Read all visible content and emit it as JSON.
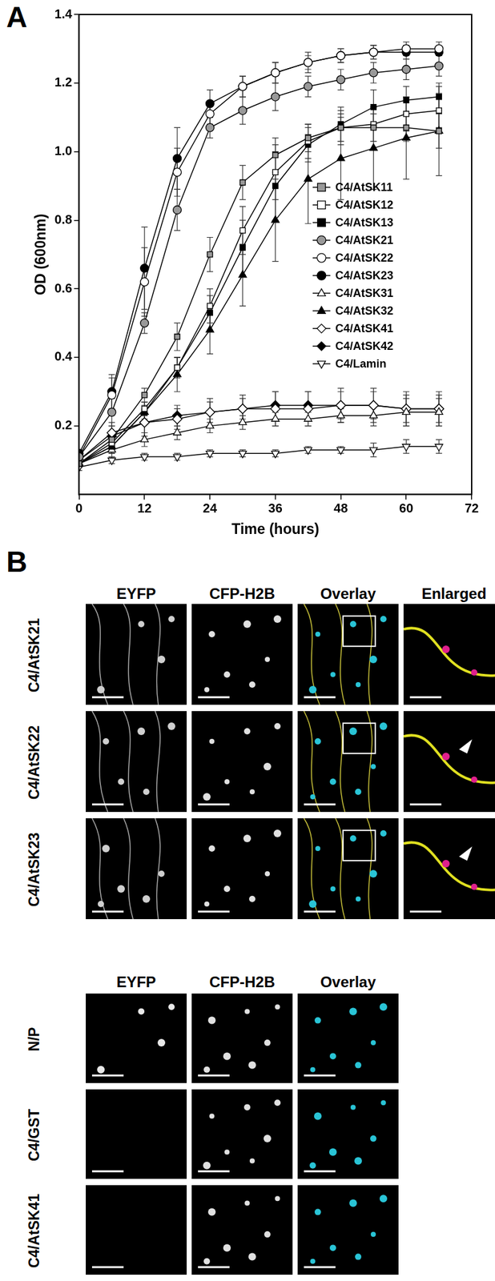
{
  "chart_data": {
    "type": "line",
    "panel_label": "A",
    "x_label": "Time (hours)",
    "y_label": "OD (600nm)",
    "x": [
      0,
      6,
      12,
      18,
      24,
      30,
      36,
      42,
      48,
      54,
      60,
      66
    ],
    "xlim": [
      0,
      72
    ],
    "xticks": [
      0,
      12,
      24,
      36,
      48,
      60,
      72
    ],
    "ylim": [
      0,
      1.4
    ],
    "yticks": [
      0.2,
      0.4,
      0.6,
      0.8,
      {
        "value": 1,
        "label": "1.0"
      },
      1.2,
      1.4
    ],
    "grid": false,
    "legend": "right",
    "series": [
      {
        "name": "C4/AtSK11",
        "color": "#999999",
        "marker": "square",
        "values": [
          0.09,
          0.16,
          0.29,
          0.46,
          0.7,
          0.91,
          0.99,
          1.04,
          1.07,
          1.07,
          1.07,
          1.06
        ],
        "errors": [
          0.01,
          0.02,
          0.02,
          0.04,
          0.05,
          0.05,
          0.05,
          0.04,
          0.04,
          0.04,
          0.04,
          0.05
        ]
      },
      {
        "name": "C4/AtSK12",
        "color": "#ffffff",
        "marker": "square",
        "values": [
          0.09,
          0.15,
          0.25,
          0.37,
          0.55,
          0.77,
          0.94,
          1.03,
          1.07,
          1.08,
          1.11,
          1.12
        ],
        "errors": [
          0.01,
          0.02,
          0.02,
          0.03,
          0.05,
          0.07,
          0.08,
          0.05,
          0.05,
          0.05,
          0.05,
          0.05
        ]
      },
      {
        "name": "C4/AtSK13",
        "color": "#000000",
        "marker": "square",
        "values": [
          0.09,
          0.14,
          0.24,
          0.37,
          0.53,
          0.72,
          0.9,
          1.02,
          1.08,
          1.13,
          1.15,
          1.16
        ],
        "errors": [
          0.01,
          0.02,
          0.02,
          0.03,
          0.05,
          0.08,
          0.1,
          0.05,
          0.05,
          0.05,
          0.04,
          0.04
        ]
      },
      {
        "name": "C4/AtSK21",
        "color": "#999999",
        "marker": "circle",
        "values": [
          0.11,
          0.24,
          0.5,
          0.83,
          1.07,
          1.12,
          1.16,
          1.19,
          1.21,
          1.23,
          1.24,
          1.25
        ],
        "errors": [
          0.01,
          0.04,
          0.03,
          0.06,
          0.03,
          0.04,
          0.04,
          0.03,
          0.03,
          0.03,
          0.03,
          0.03
        ]
      },
      {
        "name": "C4/AtSK22",
        "color": "#ffffff",
        "marker": "circle",
        "values": [
          0.11,
          0.29,
          0.62,
          0.94,
          1.11,
          1.19,
          1.23,
          1.26,
          1.28,
          1.29,
          1.3,
          1.3
        ],
        "errors": [
          0.01,
          0.05,
          0.1,
          0.07,
          0.03,
          0.03,
          0.03,
          0.02,
          0.02,
          0.02,
          0.02,
          0.02
        ]
      },
      {
        "name": "C4/AtSK23",
        "color": "#000000",
        "marker": "circle",
        "values": [
          0.12,
          0.3,
          0.66,
          0.98,
          1.14,
          1.19,
          1.23,
          1.26,
          1.28,
          1.29,
          1.29,
          1.29
        ],
        "errors": [
          0.01,
          0.05,
          0.12,
          0.09,
          0.04,
          0.03,
          0.03,
          0.03,
          0.02,
          0.02,
          0.02,
          0.01
        ]
      },
      {
        "name": "C4/AtSK31",
        "color": "#ffffff",
        "marker": "triangle",
        "values": [
          0.09,
          0.13,
          0.16,
          0.18,
          0.2,
          0.21,
          0.22,
          0.22,
          0.23,
          0.23,
          0.24,
          0.24
        ],
        "errors": [
          0.01,
          0.02,
          0.02,
          0.02,
          0.02,
          0.02,
          0.02,
          0.02,
          0.02,
          0.03,
          0.04,
          0.04
        ]
      },
      {
        "name": "C4/AtSK32",
        "color": "#000000",
        "marker": "triangle",
        "values": [
          0.09,
          0.14,
          0.24,
          0.35,
          0.48,
          0.64,
          0.8,
          0.92,
          0.98,
          1.01,
          1.04,
          1.06
        ],
        "errors": [
          0.01,
          0.02,
          0.03,
          0.05,
          0.07,
          0.09,
          0.12,
          0.13,
          0.12,
          0.12,
          0.12,
          0.13
        ]
      },
      {
        "name": "C4/AtSK41",
        "color": "#ffffff",
        "marker": "diamond",
        "values": [
          0.1,
          0.18,
          0.21,
          0.22,
          0.24,
          0.25,
          0.25,
          0.25,
          0.26,
          0.26,
          0.25,
          0.25
        ],
        "errors": [
          0.01,
          0.03,
          0.03,
          0.03,
          0.04,
          0.04,
          0.05,
          0.05,
          0.05,
          0.05,
          0.05,
          0.05
        ]
      },
      {
        "name": "C4/AtSK42",
        "color": "#000000",
        "marker": "diamond",
        "values": [
          0.1,
          0.17,
          0.21,
          0.23,
          0.24,
          0.25,
          0.26,
          0.26,
          0.26,
          0.26,
          0.25,
          0.25
        ],
        "errors": [
          0.01,
          0.03,
          0.04,
          0.03,
          0.03,
          0.03,
          0.04,
          0.04,
          0.04,
          0.04,
          0.04,
          0.04
        ]
      },
      {
        "name": "C4/Lamin",
        "color": "#ffffff",
        "marker": "triangle-down",
        "values": [
          0.08,
          0.1,
          0.11,
          0.11,
          0.12,
          0.12,
          0.12,
          0.13,
          0.13,
          0.13,
          0.14,
          0.14
        ],
        "errors": [
          0.01,
          0.01,
          0.01,
          0.01,
          0.01,
          0.01,
          0.01,
          0.01,
          0.01,
          0.02,
          0.02,
          0.02
        ]
      }
    ]
  },
  "panel_b": {
    "label": "B",
    "groups": [
      {
        "columns": [
          "EYFP",
          "CFP-H2B",
          "Overlay",
          "Enlarged"
        ],
        "rows": [
          "C4/AtSK21",
          "C4/AtSK22",
          "C4/AtSK23"
        ]
      },
      {
        "columns": [
          "EYFP",
          "CFP-H2B",
          "Overlay"
        ],
        "rows": [
          "N/P",
          "C4/GST",
          "C4/AtSK41"
        ]
      }
    ]
  }
}
